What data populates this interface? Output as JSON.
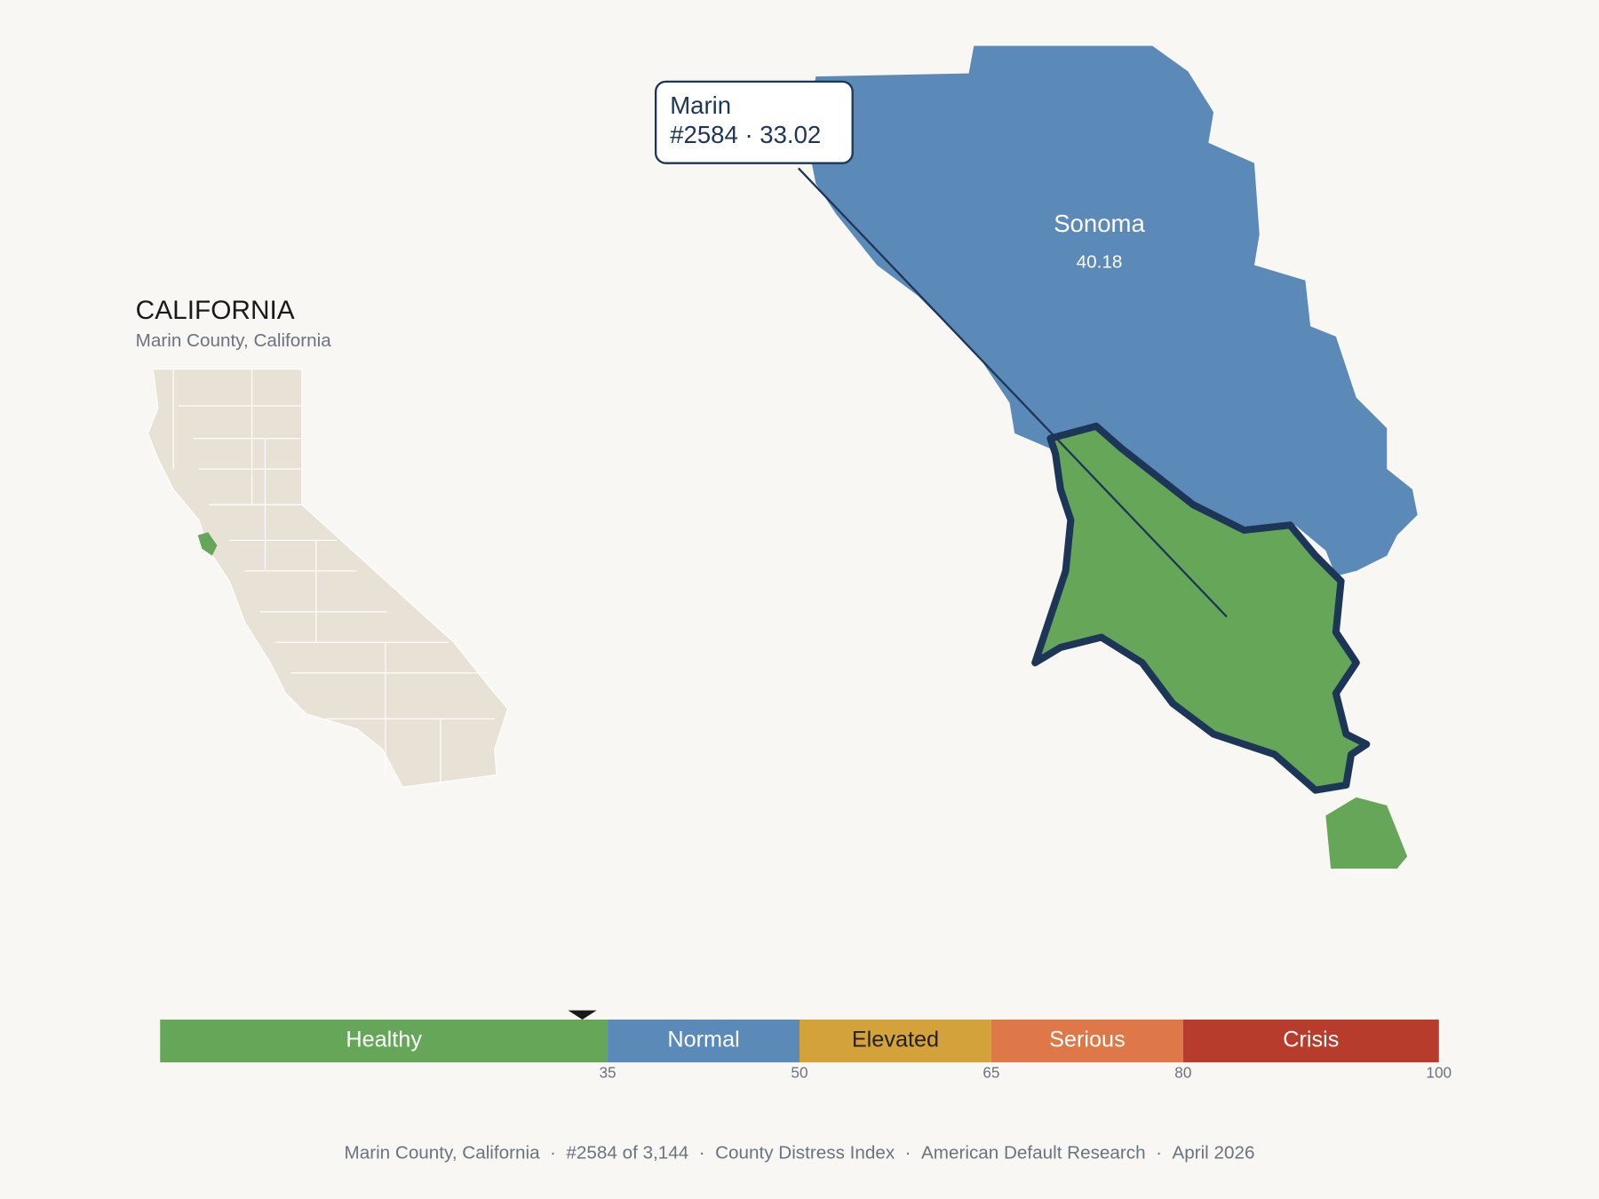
{
  "title": "CALIFORNIA",
  "subtitle": "Marin County, California",
  "state_color": "#e8e2d6",
  "regions": [
    {
      "name": "Sonoma",
      "value_label": "40.18",
      "color": "#5b89b8"
    },
    {
      "name": "Marin",
      "color": "#66a658",
      "outline": "#1d3557"
    },
    {
      "color": "#66a658"
    }
  ],
  "tooltip": {
    "name": "Marin",
    "detail": "#2584 · 33.02"
  },
  "scale": {
    "xlim": [
      0,
      100
    ],
    "xticks": [
      35,
      50,
      65,
      80,
      100
    ],
    "marker": 33.02,
    "bands": [
      {
        "label": "Healthy",
        "color": "#66a658",
        "text_color": "#ffffff"
      },
      {
        "label": "Normal",
        "color": "#5b89b8",
        "text_color": "#ffffff"
      },
      {
        "label": "Elevated",
        "color": "#d4a23a",
        "text_color": "#222222"
      },
      {
        "label": "Serious",
        "color": "#de7848",
        "text_color": "#ffffff"
      },
      {
        "label": "Crisis",
        "color": "#b83c2c",
        "text_color": "#ffffff"
      }
    ]
  },
  "footer": {
    "separator": "·",
    "items": [
      "Marin County, California",
      "#2584 of 3,144",
      "County Distress Index",
      "American Default Research",
      "April 2026"
    ]
  }
}
